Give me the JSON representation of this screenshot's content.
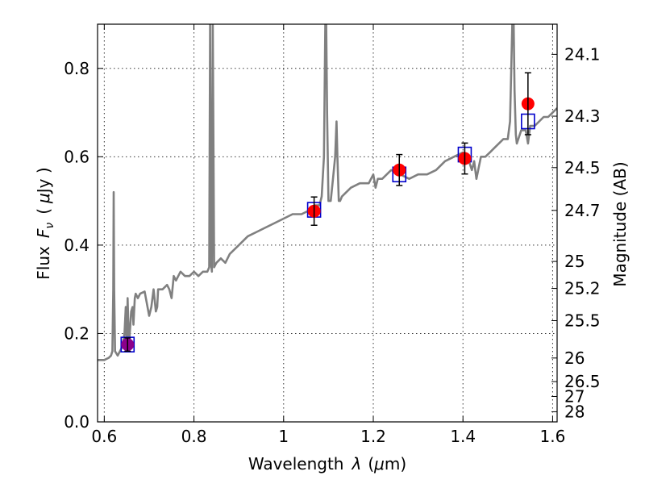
{
  "chart_data": {
    "type": "scatter",
    "xlabel_text": "Wavelength",
    "xlabel_symbol": "λ",
    "xlabel_unit_open": "(",
    "xlabel_unit_mu": "μ",
    "xlabel_unit_rest": "m)",
    "ylabel_text": "Flux",
    "ylabel_symbol": "F",
    "ylabel_sub": "ν",
    "ylabel_unit_open": "(",
    "ylabel_unit_mu": "μ",
    "ylabel_unit_rest": "Jy )",
    "y2label": "Magnitude (AB)",
    "xlim": [
      0.585,
      1.61
    ],
    "ylim": [
      0.0,
      0.9
    ],
    "xticks": [
      0.6,
      0.8,
      1.0,
      1.2,
      1.4,
      1.6
    ],
    "xtick_labels": [
      "0.6",
      "0.8",
      "1",
      "1.2",
      "1.4",
      "1.6"
    ],
    "yticks": [
      0.0,
      0.2,
      0.4,
      0.6,
      0.8
    ],
    "ytick_labels": [
      "0.0",
      "0.2",
      "0.4",
      "0.6",
      "0.8"
    ],
    "mag_ticks": [
      24.1,
      24.3,
      24.5,
      24.7,
      25,
      25.2,
      25.5,
      26,
      26.5,
      27,
      28
    ],
    "mag_tick_labels": [
      "24.1",
      "24.3",
      "24.5",
      "24.7",
      "25",
      "25.2",
      "25.5",
      "26",
      "26.5",
      "27",
      "28"
    ],
    "grid": true,
    "colors": {
      "model": "#808080",
      "observed": "#ff0000",
      "observed_first": "#8b008b",
      "synthetic": "#0000cc",
      "errorbar": "#000000"
    },
    "series": [
      {
        "name": "model spectrum",
        "type": "line",
        "x": [
          0.585,
          0.6,
          0.61,
          0.615,
          0.618,
          0.62,
          0.621,
          0.622,
          0.624,
          0.63,
          0.64,
          0.645,
          0.648,
          0.65,
          0.652,
          0.655,
          0.66,
          0.663,
          0.665,
          0.668,
          0.67,
          0.675,
          0.68,
          0.69,
          0.7,
          0.705,
          0.71,
          0.713,
          0.715,
          0.718,
          0.72,
          0.73,
          0.74,
          0.745,
          0.75,
          0.755,
          0.76,
          0.765,
          0.77,
          0.78,
          0.79,
          0.8,
          0.81,
          0.82,
          0.83,
          0.834,
          0.836,
          0.838,
          0.84,
          0.842,
          0.845,
          0.85,
          0.86,
          0.87,
          0.88,
          0.9,
          0.92,
          0.94,
          0.96,
          0.98,
          1.0,
          1.02,
          1.04,
          1.06,
          1.07,
          1.08,
          1.085,
          1.09,
          1.093,
          1.095,
          1.097,
          1.1,
          1.105,
          1.11,
          1.115,
          1.118,
          1.12,
          1.123,
          1.126,
          1.13,
          1.15,
          1.17,
          1.19,
          1.2,
          1.205,
          1.21,
          1.22,
          1.24,
          1.26,
          1.28,
          1.3,
          1.32,
          1.34,
          1.36,
          1.38,
          1.4,
          1.41,
          1.42,
          1.425,
          1.43,
          1.44,
          1.45,
          1.46,
          1.47,
          1.48,
          1.49,
          1.5,
          1.505,
          1.51,
          1.513,
          1.515,
          1.518,
          1.52,
          1.53,
          1.54,
          1.545,
          1.55,
          1.56,
          1.57,
          1.58,
          1.59,
          1.6,
          1.61
        ],
        "y": [
          0.14,
          0.14,
          0.145,
          0.15,
          0.16,
          0.3,
          0.52,
          0.3,
          0.16,
          0.15,
          0.17,
          0.2,
          0.26,
          0.16,
          0.28,
          0.17,
          0.25,
          0.26,
          0.22,
          0.28,
          0.29,
          0.28,
          0.29,
          0.295,
          0.24,
          0.26,
          0.3,
          0.27,
          0.25,
          0.26,
          0.3,
          0.3,
          0.31,
          0.3,
          0.28,
          0.33,
          0.32,
          0.33,
          0.34,
          0.33,
          0.33,
          0.34,
          0.33,
          0.34,
          0.34,
          0.35,
          0.9,
          0.36,
          0.34,
          0.9,
          0.35,
          0.36,
          0.37,
          0.36,
          0.38,
          0.4,
          0.42,
          0.43,
          0.44,
          0.45,
          0.46,
          0.47,
          0.47,
          0.48,
          0.49,
          0.49,
          0.51,
          0.6,
          0.9,
          0.9,
          0.7,
          0.5,
          0.5,
          0.55,
          0.6,
          0.68,
          0.6,
          0.5,
          0.5,
          0.51,
          0.53,
          0.54,
          0.54,
          0.56,
          0.53,
          0.55,
          0.55,
          0.57,
          0.56,
          0.55,
          0.56,
          0.56,
          0.57,
          0.59,
          0.6,
          0.61,
          0.6,
          0.57,
          0.59,
          0.55,
          0.6,
          0.6,
          0.61,
          0.62,
          0.63,
          0.64,
          0.64,
          0.68,
          0.9,
          0.9,
          0.75,
          0.65,
          0.63,
          0.66,
          0.66,
          0.63,
          0.67,
          0.67,
          0.68,
          0.69,
          0.69,
          0.7,
          0.71
        ]
      },
      {
        "name": "synthetic photometry",
        "type": "scatter",
        "marker": "square",
        "x": [
          0.652,
          1.068,
          1.258,
          1.404,
          1.545
        ],
        "y": [
          0.175,
          0.48,
          0.56,
          0.605,
          0.68
        ]
      },
      {
        "name": "observed photometry",
        "type": "scatter",
        "marker": "circle",
        "x": [
          0.652,
          1.068,
          1.258,
          1.404,
          1.545
        ],
        "y": [
          0.175,
          0.477,
          0.57,
          0.596,
          0.72
        ],
        "yerr": [
          0.015,
          0.032,
          0.035,
          0.035,
          0.07
        ]
      }
    ]
  }
}
